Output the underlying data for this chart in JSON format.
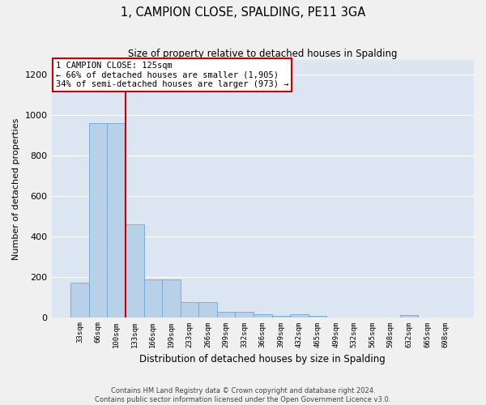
{
  "title": "1, CAMPION CLOSE, SPALDING, PE11 3GA",
  "subtitle": "Size of property relative to detached houses in Spalding",
  "xlabel": "Distribution of detached houses by size in Spalding",
  "ylabel": "Number of detached properties",
  "bar_color": "#b8d0e8",
  "bar_edge_color": "#6aaad4",
  "bg_color": "#dce6f3",
  "grid_color": "#ffffff",
  "vline_color": "#cc0000",
  "vline_x_index": 3,
  "annotation_text": "1 CAMPION CLOSE: 125sqm\n← 66% of detached houses are smaller (1,905)\n34% of semi-detached houses are larger (973) →",
  "categories": [
    "33sqm",
    "66sqm",
    "100sqm",
    "133sqm",
    "166sqm",
    "199sqm",
    "233sqm",
    "266sqm",
    "299sqm",
    "332sqm",
    "366sqm",
    "399sqm",
    "432sqm",
    "465sqm",
    "499sqm",
    "532sqm",
    "565sqm",
    "598sqm",
    "632sqm",
    "665sqm",
    "698sqm"
  ],
  "values": [
    170,
    960,
    960,
    460,
    185,
    185,
    75,
    75,
    28,
    28,
    14,
    5,
    14,
    5,
    0,
    0,
    0,
    0,
    10,
    0,
    0
  ],
  "ylim": [
    0,
    1270
  ],
  "yticks": [
    0,
    200,
    400,
    600,
    800,
    1000,
    1200
  ],
  "footnote": "Contains HM Land Registry data © Crown copyright and database right 2024.\nContains public sector information licensed under the Open Government Licence v3.0.",
  "fig_bg": "#f0f0f0"
}
